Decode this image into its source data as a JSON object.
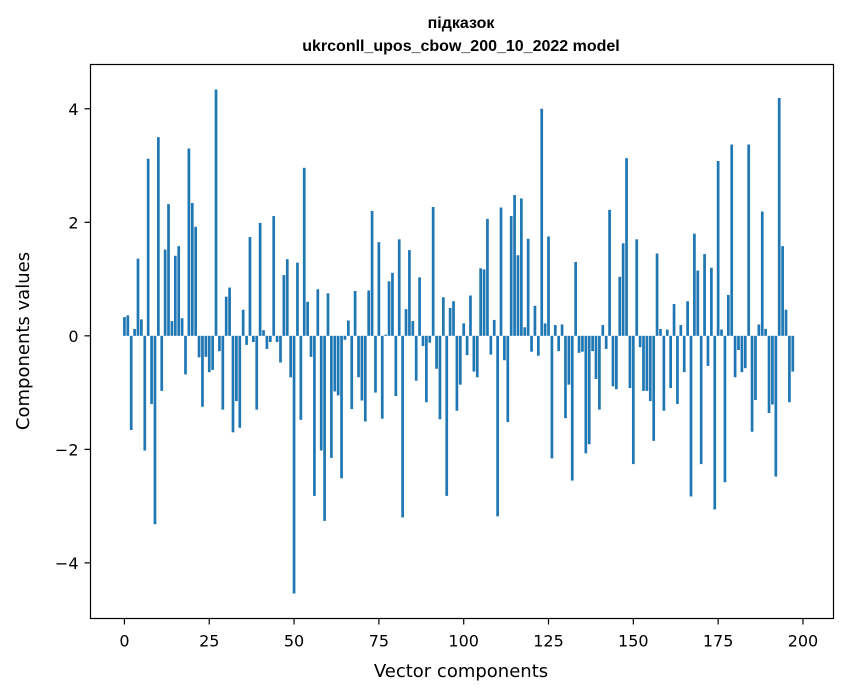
{
  "chart_data": {
    "type": "bar",
    "title_line1": "підказок",
    "title_line2": "ukrconll_upos_cbow_200_10_2022 model",
    "xlabel": "Vector components",
    "ylabel": "Components values",
    "xlim": [
      -10,
      209
    ],
    "ylim": [
      -4.98,
      4.78
    ],
    "xticks": [
      0,
      25,
      50,
      75,
      100,
      125,
      150,
      175,
      200
    ],
    "xtick_labels": [
      "0",
      "25",
      "50",
      "75",
      "100",
      "125",
      "150",
      "175",
      "200"
    ],
    "yticks": [
      -4,
      -2,
      0,
      2,
      4
    ],
    "ytick_labels": [
      "−4",
      "−2",
      "0",
      "2",
      "4"
    ],
    "bar_color": "#1f77b4",
    "grid": false,
    "values": [
      0.33,
      0.36,
      -1.66,
      0.12,
      1.36,
      0.29,
      -2.02,
      3.12,
      -1.2,
      -3.32,
      3.5,
      -0.97,
      1.52,
      2.32,
      0.26,
      1.41,
      1.58,
      0.31,
      -0.68,
      3.3,
      2.34,
      1.92,
      -0.38,
      -1.25,
      -0.37,
      -0.64,
      -0.6,
      4.34,
      -0.27,
      -1.3,
      0.69,
      0.85,
      -1.7,
      -1.15,
      -1.62,
      0.46,
      -0.16,
      1.74,
      -0.11,
      -1.3,
      1.99,
      0.1,
      -0.23,
      -0.11,
      2.11,
      -0.11,
      -0.47,
      1.07,
      1.35,
      -0.73,
      -4.54,
      1.29,
      -1.48,
      2.96,
      0.6,
      -0.37,
      -2.82,
      0.82,
      -2.02,
      -3.26,
      0.75,
      -2.15,
      -0.98,
      -1.05,
      -2.51,
      -0.07,
      0.27,
      -1.29,
      0.79,
      -0.73,
      -1.14,
      -1.51,
      0.8,
      2.2,
      -1.0,
      1.65,
      -1.46,
      0.02,
      0.96,
      1.11,
      -1.06,
      1.7,
      -3.2,
      0.47,
      1.51,
      0.26,
      -0.79,
      1.03,
      -0.18,
      -1.17,
      -0.12,
      2.27,
      -0.58,
      -1.47,
      0.68,
      -2.82,
      0.49,
      0.61,
      -1.32,
      -0.86,
      0.22,
      -0.34,
      0.71,
      -0.63,
      -0.73,
      1.19,
      1.17,
      2.06,
      -0.33,
      0.28,
      -3.18,
      2.26,
      -0.43,
      -1.52,
      2.11,
      2.48,
      1.42,
      2.42,
      0.15,
      1.71,
      -0.28,
      0.53,
      -0.35,
      4.0,
      0.22,
      1.75,
      -2.16,
      0.19,
      -0.27,
      0.2,
      -1.45,
      -0.86,
      -2.55,
      1.3,
      -0.3,
      -0.28,
      -2.07,
      -1.91,
      -0.27,
      -0.76,
      -1.3,
      0.19,
      -0.23,
      2.22,
      -0.89,
      -0.94,
      1.04,
      1.63,
      3.13,
      -0.92,
      -2.26,
      1.7,
      -0.2,
      -0.97,
      -0.97,
      -1.15,
      -1.85,
      1.45,
      0.12,
      -1.32,
      0.11,
      -0.92,
      0.56,
      -1.2,
      0.19,
      -0.64,
      0.61,
      -2.83,
      1.8,
      1.15,
      -2.26,
      1.44,
      -0.53,
      1.2,
      -3.06,
      3.08,
      0.11,
      -2.58,
      0.72,
      3.37,
      -0.73,
      -0.25,
      -0.64,
      -0.57,
      3.37,
      -1.69,
      -1.13,
      0.2,
      2.19,
      0.12,
      -1.36,
      -1.21,
      -2.48,
      4.19,
      1.58,
      0.46,
      -1.17,
      -0.63
    ]
  }
}
